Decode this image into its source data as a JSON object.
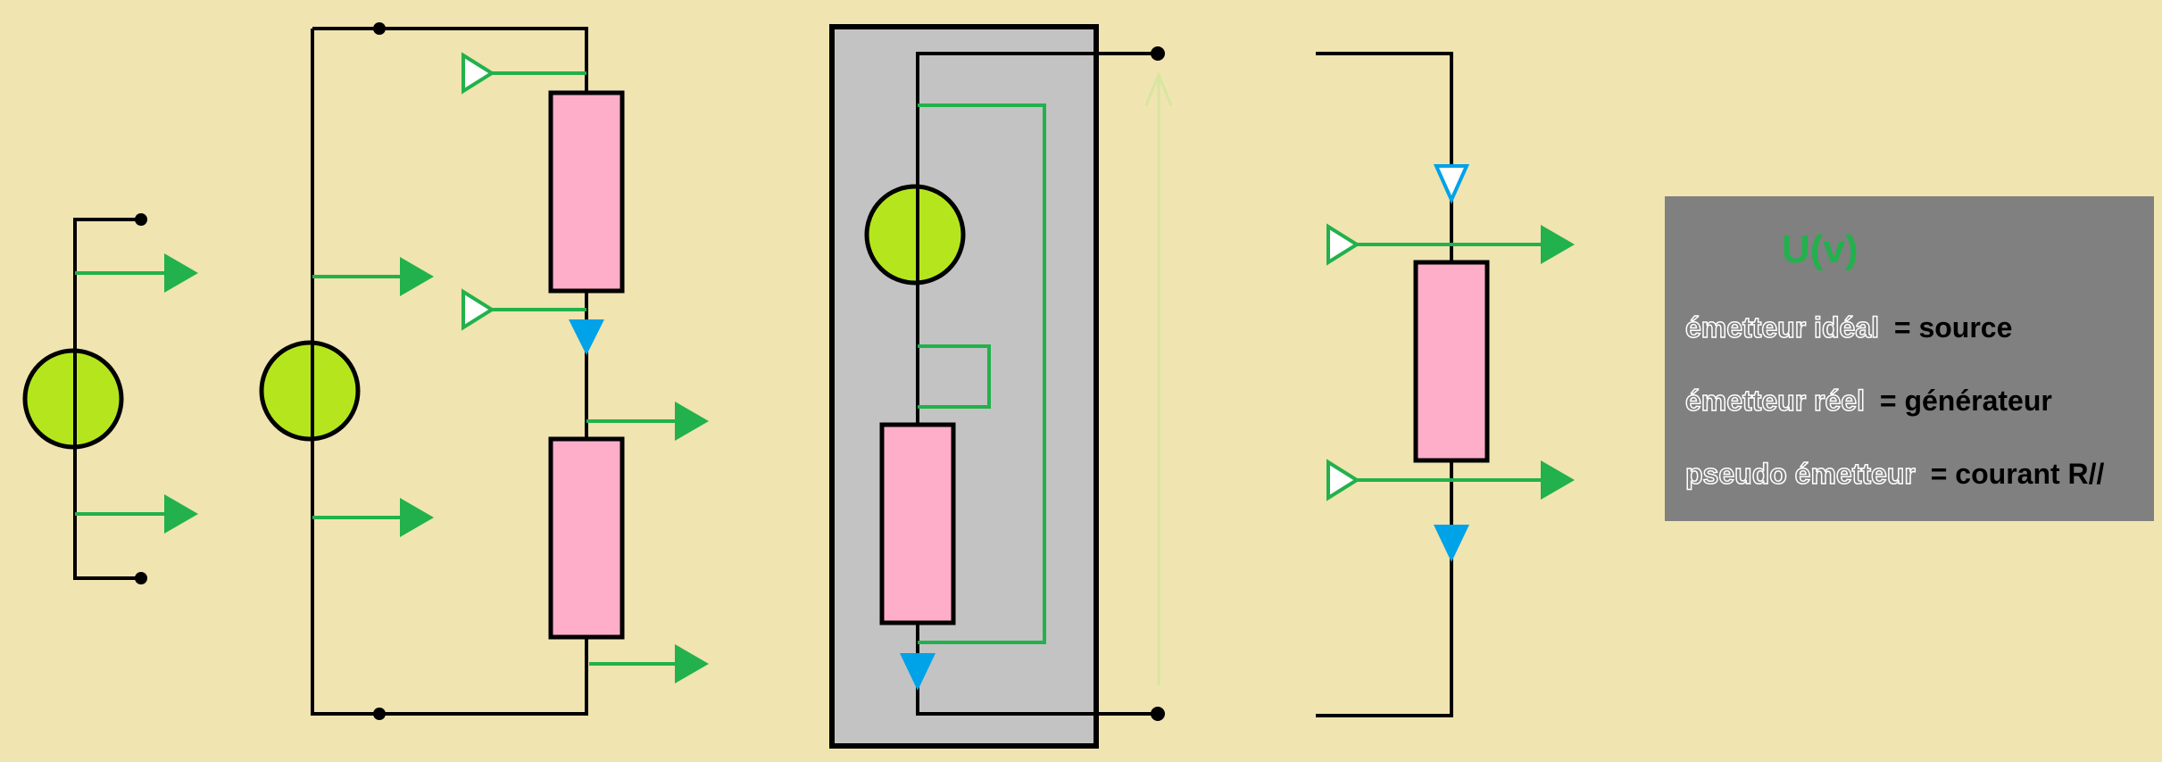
{
  "colors": {
    "background": "#f0e4b0",
    "wire": "#000000",
    "current_arrow": "#22b14c",
    "voltage_arrow": "#00a2e8",
    "resistor": "#ffaec9",
    "source": "#b5e61d",
    "box_fill": "#c3c3c3",
    "legend_fill": "#808080",
    "tension_line": "#d8e6a0"
  },
  "legend": {
    "title": "U(v)",
    "rows": [
      {
        "term": "émetteur idéal",
        "definition": "= source"
      },
      {
        "term": "émetteur réel",
        "definition": "= générateur"
      },
      {
        "term": "pseudo émetteur",
        "definition": "= courant R//"
      }
    ]
  }
}
